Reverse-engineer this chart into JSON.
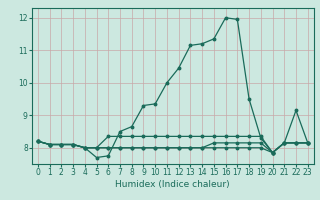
{
  "title": "",
  "xlabel": "Humidex (Indice chaleur)",
  "background_color": "#cce8e0",
  "line_color": "#1a6b5a",
  "grid_color_h": "#c8a8a8",
  "grid_color_v": "#c8a8a8",
  "xlim": [
    -0.5,
    23.5
  ],
  "ylim": [
    7.5,
    12.3
  ],
  "yticks": [
    8,
    9,
    10,
    11,
    12
  ],
  "xticks": [
    0,
    1,
    2,
    3,
    4,
    5,
    6,
    7,
    8,
    9,
    10,
    11,
    12,
    13,
    14,
    15,
    16,
    17,
    18,
    19,
    20,
    21,
    22,
    23
  ],
  "series": [
    [
      8.2,
      8.1,
      8.1,
      8.1,
      8.0,
      7.7,
      7.75,
      8.5,
      8.65,
      9.3,
      9.35,
      10.0,
      10.45,
      11.15,
      11.2,
      11.35,
      12.0,
      11.95,
      9.5,
      8.3,
      7.85,
      8.15,
      9.15,
      8.15
    ],
    [
      8.2,
      8.1,
      8.1,
      8.1,
      8.0,
      8.0,
      8.0,
      8.0,
      8.0,
      8.0,
      8.0,
      8.0,
      8.0,
      8.0,
      8.0,
      8.15,
      8.15,
      8.15,
      8.15,
      8.15,
      7.85,
      8.15,
      8.15,
      8.15
    ],
    [
      8.2,
      8.1,
      8.1,
      8.1,
      8.0,
      8.0,
      8.35,
      8.35,
      8.35,
      8.35,
      8.35,
      8.35,
      8.35,
      8.35,
      8.35,
      8.35,
      8.35,
      8.35,
      8.35,
      8.35,
      7.85,
      8.15,
      8.15,
      8.15
    ],
    [
      8.2,
      8.1,
      8.1,
      8.1,
      8.0,
      8.0,
      8.0,
      8.0,
      8.0,
      8.0,
      8.0,
      8.0,
      8.0,
      8.0,
      8.0,
      8.0,
      8.0,
      8.0,
      8.0,
      8.0,
      7.85,
      8.15,
      8.15,
      8.15
    ]
  ]
}
